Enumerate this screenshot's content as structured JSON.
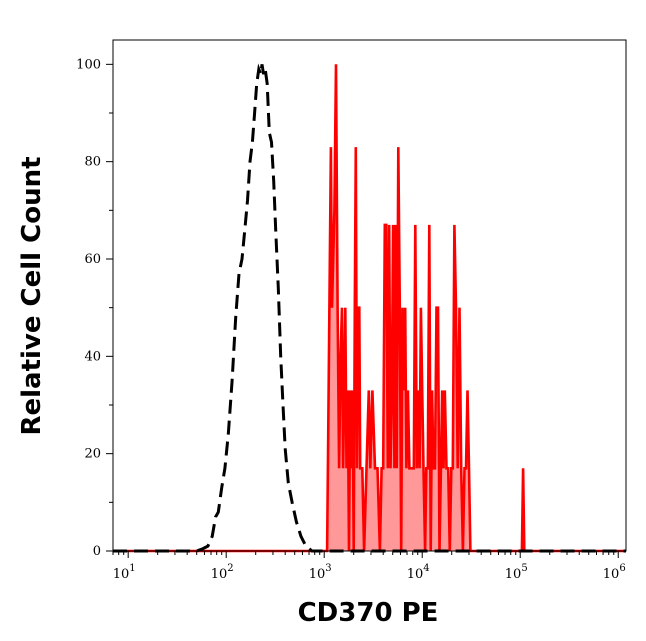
{
  "chart_data": {
    "type": "area",
    "title": "",
    "xlabel": "CD370 PE",
    "ylabel": "Relative Cell Count",
    "x_scale": "log",
    "xlim": [
      7,
      1200000
    ],
    "ylim": [
      0,
      105
    ],
    "x_ticks": [
      {
        "base": "10",
        "exp": "1",
        "value": 10
      },
      {
        "base": "10",
        "exp": "2",
        "value": 100
      },
      {
        "base": "10",
        "exp": "3",
        "value": 1000
      },
      {
        "base": "10",
        "exp": "4",
        "value": 10000
      },
      {
        "base": "10",
        "exp": "5",
        "value": 100000
      },
      {
        "base": "10",
        "exp": "6",
        "value": 1000000
      }
    ],
    "y_ticks": [
      "0",
      "20",
      "40",
      "60",
      "80",
      "100"
    ],
    "grid": false,
    "legend": "none",
    "colors": {
      "stained_line": "#ff0000",
      "stained_fill": "#ff9999",
      "control_line": "#000000"
    },
    "series": [
      {
        "style": "dashed-black",
        "points": [
          [
            7,
            0
          ],
          [
            50,
            0
          ],
          [
            58,
            0.5
          ],
          [
            65,
            1
          ],
          [
            72,
            3
          ],
          [
            78,
            7
          ],
          [
            83,
            8
          ],
          [
            90,
            13
          ],
          [
            97,
            17
          ],
          [
            105,
            24
          ],
          [
            115,
            35
          ],
          [
            125,
            48
          ],
          [
            135,
            57
          ],
          [
            145,
            60
          ],
          [
            155,
            66
          ],
          [
            165,
            72
          ],
          [
            175,
            80
          ],
          [
            185,
            84
          ],
          [
            195,
            90
          ],
          [
            205,
            96
          ],
          [
            215,
            99
          ],
          [
            225,
            98
          ],
          [
            232,
            100
          ],
          [
            240,
            98
          ],
          [
            250,
            99
          ],
          [
            262,
            96
          ],
          [
            275,
            86
          ],
          [
            290,
            84
          ],
          [
            305,
            76
          ],
          [
            320,
            66
          ],
          [
            340,
            54
          ],
          [
            360,
            40
          ],
          [
            380,
            30
          ],
          [
            400,
            21
          ],
          [
            430,
            14
          ],
          [
            470,
            10
          ],
          [
            520,
            6
          ],
          [
            580,
            3
          ],
          [
            650,
            1
          ],
          [
            750,
            0
          ],
          [
            1200000,
            0
          ]
        ]
      },
      {
        "style": "solid-red-filled",
        "points": [
          [
            7,
            0
          ],
          [
            1000,
            0
          ],
          [
            1070,
            0
          ],
          [
            1090,
            17
          ],
          [
            1140,
            59
          ],
          [
            1170,
            83
          ],
          [
            1200,
            50
          ],
          [
            1270,
            70
          ],
          [
            1320,
            100
          ],
          [
            1370,
            50
          ],
          [
            1420,
            17
          ],
          [
            1470,
            40
          ],
          [
            1520,
            50
          ],
          [
            1560,
            17
          ],
          [
            1600,
            33
          ],
          [
            1640,
            50
          ],
          [
            1690,
            17
          ],
          [
            1740,
            33
          ],
          [
            1790,
            0
          ],
          [
            1840,
            33
          ],
          [
            1890,
            17
          ],
          [
            1950,
            33
          ],
          [
            2000,
            0
          ],
          [
            2050,
            50
          ],
          [
            2100,
            83
          ],
          [
            2160,
            17
          ],
          [
            2220,
            50
          ],
          [
            2280,
            50
          ],
          [
            2330,
            17
          ],
          [
            2450,
            17
          ],
          [
            2550,
            0
          ],
          [
            2700,
            17
          ],
          [
            2850,
            33
          ],
          [
            2950,
            17
          ],
          [
            3100,
            33
          ],
          [
            3300,
            17
          ],
          [
            3500,
            17
          ],
          [
            3700,
            0
          ],
          [
            3850,
            17
          ],
          [
            4000,
            17
          ],
          [
            4150,
            67
          ],
          [
            4300,
            67
          ],
          [
            4450,
            17
          ],
          [
            4600,
            67
          ],
          [
            4750,
            17
          ],
          [
            4900,
            33
          ],
          [
            5050,
            67
          ],
          [
            5200,
            17
          ],
          [
            5350,
            67
          ],
          [
            5500,
            17
          ],
          [
            5700,
            83
          ],
          [
            5900,
            50
          ],
          [
            6100,
            0
          ],
          [
            6300,
            50
          ],
          [
            6500,
            33
          ],
          [
            6700,
            50
          ],
          [
            6900,
            17
          ],
          [
            7150,
            33
          ],
          [
            7400,
            17
          ],
          [
            7650,
            17
          ],
          [
            7900,
            17
          ],
          [
            8200,
            17
          ],
          [
            8500,
            67
          ],
          [
            8800,
            17
          ],
          [
            9100,
            33
          ],
          [
            9400,
            17
          ],
          [
            9700,
            50
          ],
          [
            10000,
            33
          ],
          [
            10300,
            17
          ],
          [
            10700,
            0
          ],
          [
            11000,
            17
          ],
          [
            11400,
            17
          ],
          [
            11800,
            67
          ],
          [
            12200,
            0
          ],
          [
            12600,
            33
          ],
          [
            13000,
            17
          ],
          [
            13500,
            17
          ],
          [
            14000,
            50
          ],
          [
            14500,
            50
          ],
          [
            15000,
            0
          ],
          [
            15500,
            17
          ],
          [
            16000,
            33
          ],
          [
            16500,
            17
          ],
          [
            17000,
            33
          ],
          [
            17700,
            17
          ],
          [
            18400,
            17
          ],
          [
            19100,
            0
          ],
          [
            19800,
            17
          ],
          [
            20500,
            17
          ],
          [
            21300,
            67
          ],
          [
            22100,
            50
          ],
          [
            23000,
            17
          ],
          [
            24000,
            50
          ],
          [
            25000,
            17
          ],
          [
            26000,
            0
          ],
          [
            27000,
            17
          ],
          [
            28000,
            17
          ],
          [
            29000,
            33
          ],
          [
            30000,
            17
          ],
          [
            31000,
            0
          ],
          [
            33000,
            0
          ],
          [
            100000,
            0
          ],
          [
            104000,
            0
          ],
          [
            107000,
            17
          ],
          [
            110000,
            0
          ],
          [
            115000,
            0
          ],
          [
            1200000,
            0
          ]
        ]
      }
    ]
  }
}
